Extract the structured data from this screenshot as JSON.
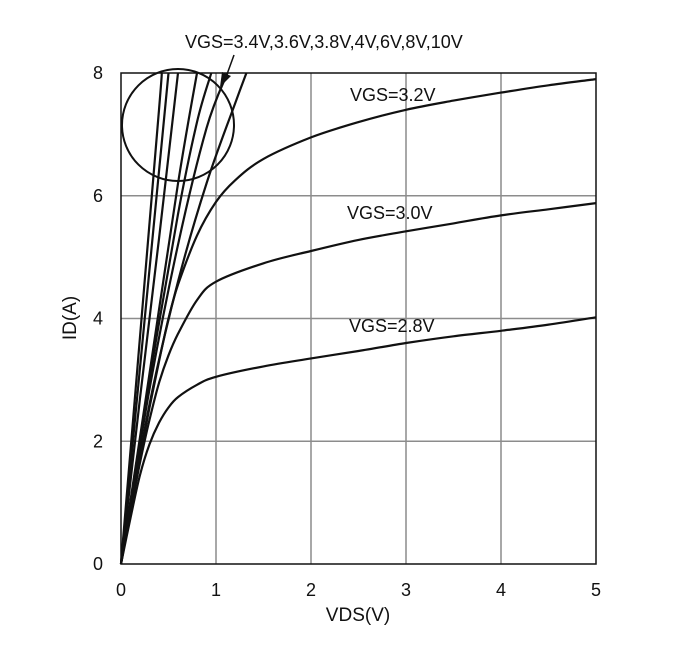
{
  "chart_data": {
    "type": "line",
    "title": "",
    "xlabel": "VDS(V)",
    "ylabel": "ID(A)",
    "xlim": [
      0,
      5
    ],
    "ylim": [
      0,
      8
    ],
    "xticks": [
      "0",
      "1",
      "2",
      "3",
      "4",
      "5"
    ],
    "yticks": [
      "0",
      "2",
      "4",
      "6",
      "8"
    ],
    "grid": true,
    "legend": "none",
    "line_color": "#111111",
    "grid_color": "#8c8c8c",
    "annotations": [
      {
        "text": "VGS=3.4V,3.6V,3.8V,4V,6V,8V,10V",
        "target": "steep curves (circled)"
      },
      {
        "text": "VGS=3.2V",
        "target": "VGS=3.2V"
      },
      {
        "text": "VGS=3.0V",
        "target": "VGS=3.0V"
      },
      {
        "text": "VGS=2.8V",
        "target": "VGS=2.8V"
      }
    ],
    "series": [
      {
        "name": "VGS=2.8V",
        "x": [
          0,
          0.1,
          0.2,
          0.3,
          0.4,
          0.5,
          0.6,
          0.8,
          1.0,
          1.5,
          2.0,
          2.5,
          3.0,
          3.5,
          4.0,
          4.5,
          5.0
        ],
        "y": [
          0,
          0.75,
          1.45,
          1.95,
          2.3,
          2.55,
          2.72,
          2.92,
          3.05,
          3.22,
          3.35,
          3.47,
          3.6,
          3.71,
          3.8,
          3.9,
          4.02
        ]
      },
      {
        "name": "VGS=3.0V",
        "x": [
          0,
          0.1,
          0.2,
          0.3,
          0.4,
          0.5,
          0.6,
          0.8,
          1.0,
          1.5,
          2.0,
          2.5,
          3.0,
          3.5,
          4.0,
          4.5,
          5.0
        ],
        "y": [
          0,
          0.85,
          1.65,
          2.35,
          2.95,
          3.4,
          3.75,
          4.3,
          4.6,
          4.9,
          5.1,
          5.28,
          5.42,
          5.55,
          5.68,
          5.78,
          5.88
        ]
      },
      {
        "name": "VGS=3.2V",
        "x": [
          0,
          0.1,
          0.2,
          0.3,
          0.4,
          0.5,
          0.6,
          0.8,
          1.0,
          1.2,
          1.5,
          2.0,
          2.5,
          3.0,
          3.5,
          4.0,
          4.5,
          5.0
        ],
        "y": [
          0,
          0.9,
          1.75,
          2.55,
          3.3,
          4.0,
          4.55,
          5.35,
          5.9,
          6.25,
          6.6,
          6.95,
          7.2,
          7.4,
          7.55,
          7.68,
          7.8,
          7.9
        ]
      },
      {
        "name": "VGS=3.4V",
        "x": [
          0,
          0.3,
          0.6,
          0.9,
          1.2,
          1.32
        ],
        "y": [
          0,
          2.6,
          4.6,
          6.2,
          7.5,
          8.0
        ]
      },
      {
        "name": "VGS=3.6V",
        "x": [
          0,
          0.3,
          0.6,
          0.9,
          1.12
        ],
        "y": [
          0,
          2.85,
          5.2,
          7.1,
          8.0
        ]
      },
      {
        "name": "VGS=3.8V",
        "x": [
          0,
          0.3,
          0.6,
          0.8,
          0.95
        ],
        "y": [
          0,
          3.0,
          5.7,
          7.2,
          8.0
        ]
      },
      {
        "name": "VGS=4V",
        "x": [
          0,
          0.3,
          0.6,
          0.8
        ],
        "y": [
          0,
          3.1,
          6.2,
          8.0
        ]
      },
      {
        "name": "VGS=6V",
        "x": [
          0,
          0.2,
          0.4,
          0.6
        ],
        "y": [
          0,
          2.7,
          5.3,
          8.0
        ]
      },
      {
        "name": "VGS=8V",
        "x": [
          0,
          0.2,
          0.4,
          0.5
        ],
        "y": [
          0,
          3.2,
          6.4,
          8.0
        ]
      },
      {
        "name": "VGS=10V",
        "x": [
          0,
          0.2,
          0.4,
          0.43
        ],
        "y": [
          0,
          3.7,
          7.4,
          8.0
        ]
      }
    ]
  }
}
